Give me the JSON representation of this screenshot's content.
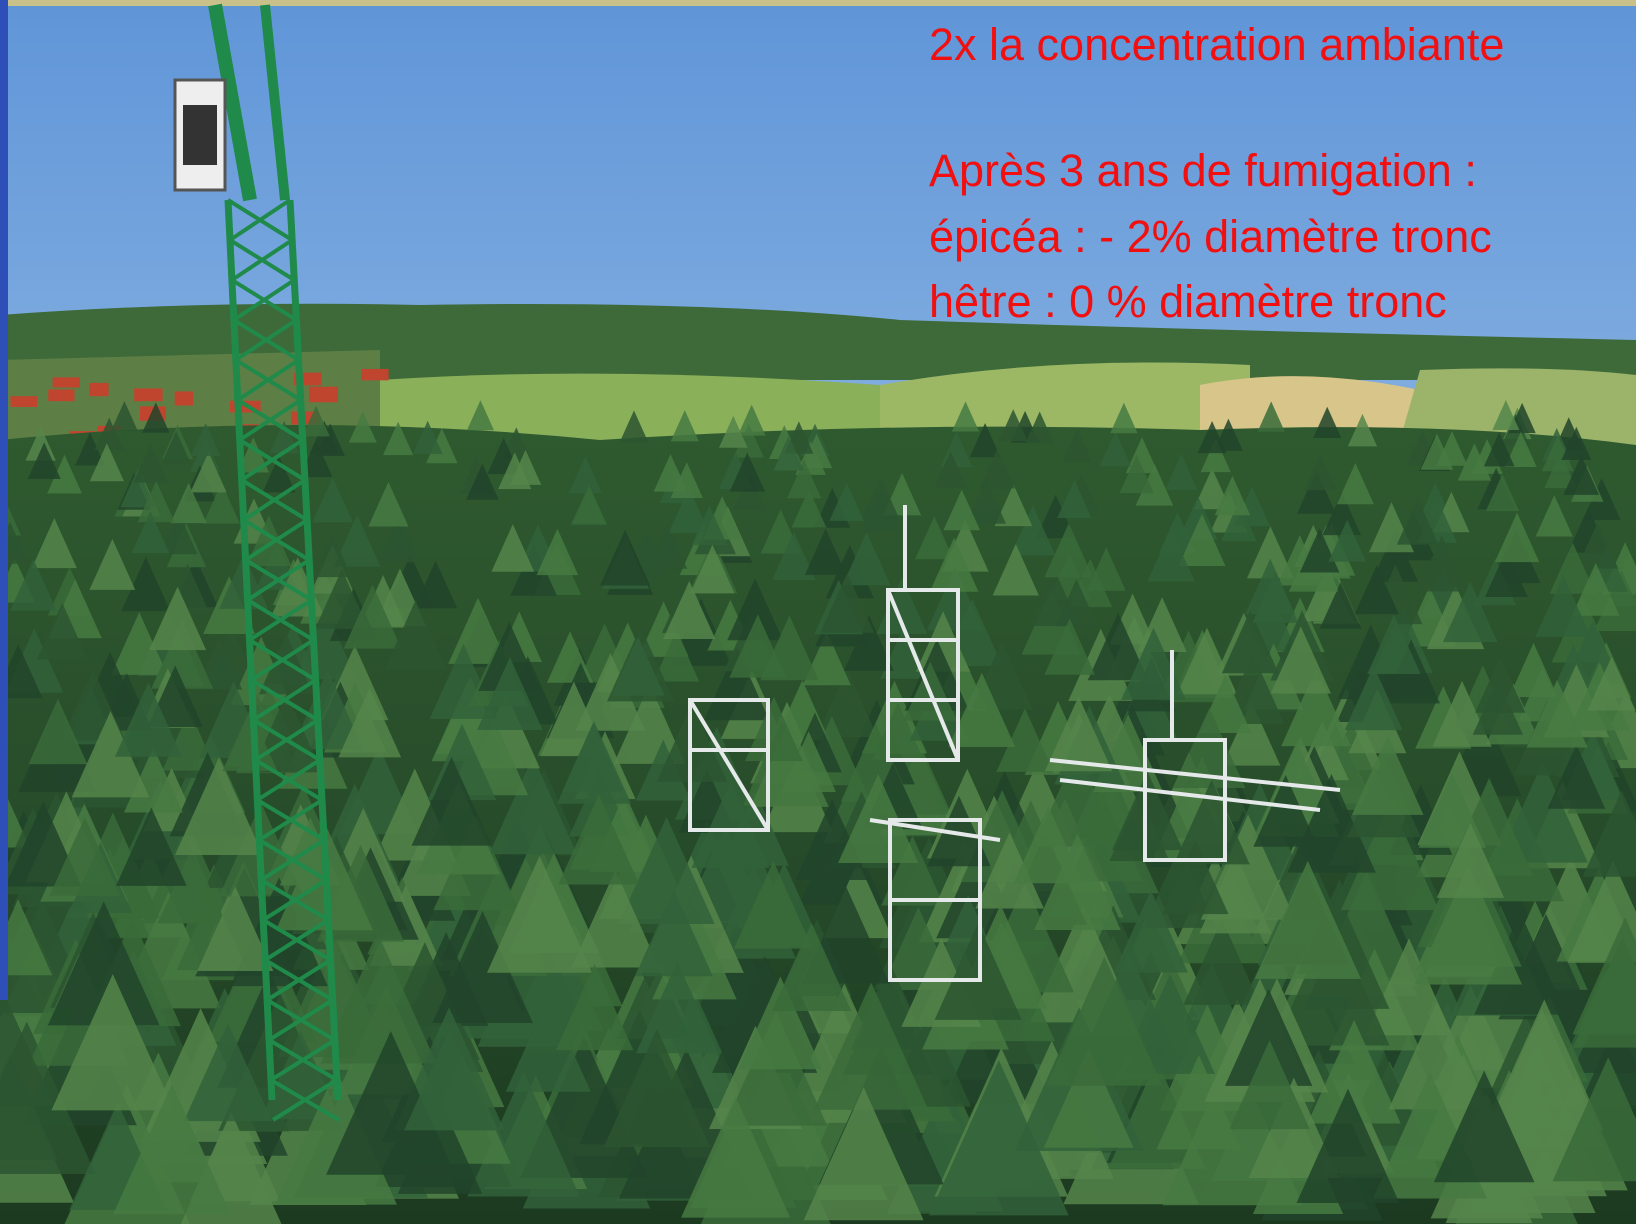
{
  "overlay": {
    "headline": "2x la concentration ambiante",
    "lines": [
      "Après 3 ans de fumigation :",
      "épicéa : - 2% diamètre tronc",
      "hêtre : 0 % diamètre tronc"
    ]
  }
}
